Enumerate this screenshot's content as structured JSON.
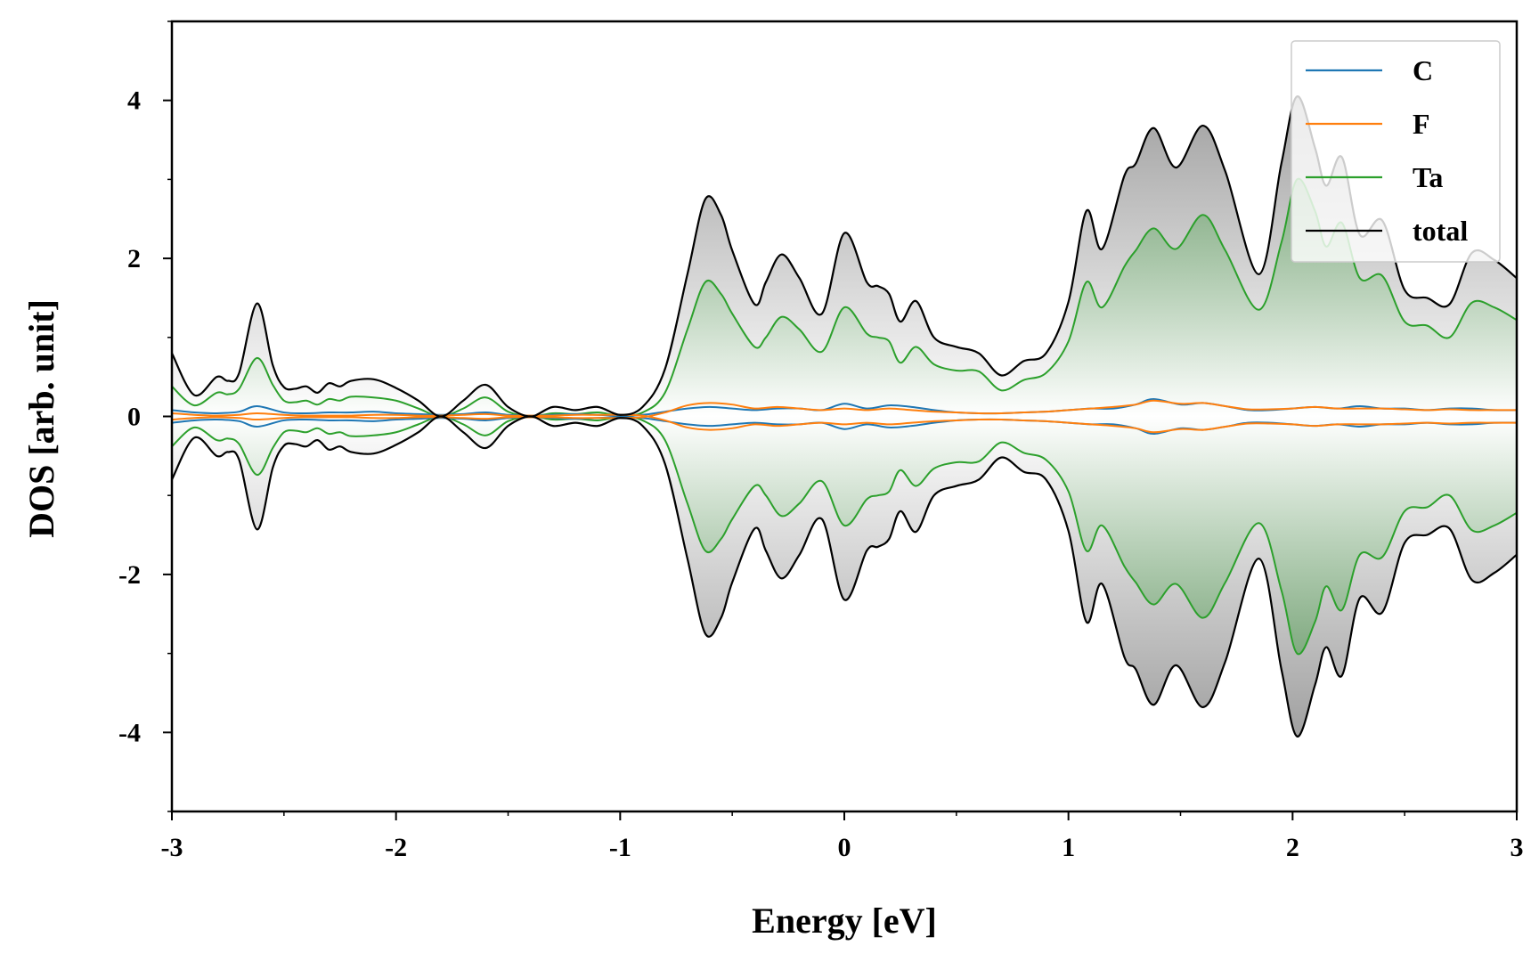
{
  "chart_data": {
    "type": "line",
    "xlabel": "Energy [eV]",
    "ylabel": "DOS [arb. unit]",
    "xlim": [
      -3,
      3
    ],
    "ylim": [
      -5,
      5
    ],
    "x_ticks": [
      -3,
      -2,
      -1,
      0,
      1,
      2,
      3
    ],
    "x_tick_labels": [
      "-3",
      "-2",
      "-1",
      "0",
      "1",
      "2",
      "3"
    ],
    "y_ticks": [
      -4,
      -2,
      0,
      2,
      4
    ],
    "y_tick_labels": [
      "-4",
      "-2",
      "0",
      "2",
      "4"
    ],
    "mirrored_spin": true,
    "grid": false,
    "legend_position": "top-right",
    "fill": {
      "total": "gray-gradient",
      "Ta": "green-gradient"
    },
    "series": [
      {
        "name": "C",
        "color": "#1f77b4",
        "x": [
          -3,
          -2.9,
          -2.8,
          -2.7,
          -2.62,
          -2.5,
          -2.4,
          -2.3,
          -2.2,
          -2.1,
          -2.0,
          -1.9,
          -1.8,
          -1.7,
          -1.6,
          -1.5,
          -1.4,
          -1.3,
          -1.2,
          -1.1,
          -1.0,
          -0.9,
          -0.8,
          -0.7,
          -0.6,
          -0.5,
          -0.4,
          -0.3,
          -0.2,
          -0.1,
          0.0,
          0.1,
          0.2,
          0.3,
          0.4,
          0.5,
          0.6,
          0.7,
          0.8,
          0.9,
          1.0,
          1.1,
          1.2,
          1.3,
          1.38,
          1.5,
          1.6,
          1.7,
          1.8,
          1.9,
          2.0,
          2.1,
          2.2,
          2.3,
          2.4,
          2.5,
          2.6,
          2.7,
          2.8,
          2.9,
          3.0
        ],
        "values": [
          0.08,
          0.05,
          0.04,
          0.06,
          0.13,
          0.05,
          0.04,
          0.05,
          0.05,
          0.06,
          0.04,
          0.03,
          0.02,
          0.03,
          0.05,
          0.02,
          0.01,
          0.02,
          0.03,
          0.02,
          0.01,
          0.02,
          0.06,
          0.1,
          0.12,
          0.1,
          0.08,
          0.1,
          0.1,
          0.08,
          0.16,
          0.1,
          0.14,
          0.12,
          0.08,
          0.05,
          0.04,
          0.04,
          0.05,
          0.06,
          0.08,
          0.1,
          0.1,
          0.15,
          0.22,
          0.15,
          0.17,
          0.13,
          0.08,
          0.08,
          0.1,
          0.12,
          0.1,
          0.13,
          0.1,
          0.1,
          0.08,
          0.1,
          0.1,
          0.08,
          0.08
        ]
      },
      {
        "name": "F",
        "color": "#ff7f0e",
        "x": [
          -3,
          -2.9,
          -2.8,
          -2.7,
          -2.62,
          -2.5,
          -2.4,
          -2.3,
          -2.2,
          -2.1,
          -2.0,
          -1.9,
          -1.8,
          -1.7,
          -1.6,
          -1.5,
          -1.4,
          -1.3,
          -1.2,
          -1.1,
          -1.0,
          -0.9,
          -0.8,
          -0.7,
          -0.6,
          -0.5,
          -0.4,
          -0.3,
          -0.2,
          -0.1,
          0.0,
          0.1,
          0.2,
          0.3,
          0.4,
          0.5,
          0.6,
          0.7,
          0.8,
          0.9,
          1.0,
          1.1,
          1.2,
          1.3,
          1.38,
          1.5,
          1.6,
          1.7,
          1.8,
          1.9,
          2.0,
          2.1,
          2.2,
          2.3,
          2.4,
          2.5,
          2.6,
          2.7,
          2.8,
          2.9,
          3.0
        ],
        "values": [
          -0.04,
          -0.02,
          -0.01,
          -0.02,
          -0.04,
          -0.02,
          -0.01,
          -0.01,
          -0.01,
          -0.02,
          -0.02,
          -0.01,
          -0.01,
          -0.02,
          -0.03,
          -0.01,
          -0.01,
          -0.01,
          -0.02,
          -0.02,
          -0.02,
          -0.01,
          0.05,
          0.14,
          0.17,
          0.15,
          0.1,
          0.12,
          0.1,
          0.08,
          0.1,
          0.08,
          0.1,
          0.08,
          0.06,
          0.05,
          0.04,
          0.04,
          0.05,
          0.06,
          0.08,
          0.1,
          0.12,
          0.15,
          0.2,
          0.16,
          0.17,
          0.13,
          0.09,
          0.09,
          0.1,
          0.12,
          0.1,
          0.1,
          0.1,
          0.09,
          0.08,
          0.09,
          0.08,
          0.08,
          0.08
        ]
      },
      {
        "name": "Ta",
        "color": "#2ca02c",
        "x": [
          -3,
          -2.9,
          -2.8,
          -2.75,
          -2.7,
          -2.62,
          -2.55,
          -2.5,
          -2.45,
          -2.4,
          -2.35,
          -2.3,
          -2.25,
          -2.2,
          -2.1,
          -2.0,
          -1.9,
          -1.8,
          -1.7,
          -1.6,
          -1.5,
          -1.4,
          -1.3,
          -1.2,
          -1.1,
          -1.0,
          -0.9,
          -0.8,
          -0.7,
          -0.62,
          -0.55,
          -0.5,
          -0.4,
          -0.35,
          -0.28,
          -0.2,
          -0.1,
          0.0,
          0.1,
          0.15,
          0.2,
          0.25,
          0.32,
          0.4,
          0.5,
          0.6,
          0.7,
          0.8,
          0.9,
          1.0,
          1.08,
          1.15,
          1.25,
          1.3,
          1.38,
          1.48,
          1.6,
          1.7,
          1.85,
          1.95,
          2.02,
          2.1,
          2.15,
          2.22,
          2.3,
          2.4,
          2.5,
          2.6,
          2.7,
          2.8,
          2.9,
          3.0
        ],
        "values": [
          0.38,
          0.14,
          0.3,
          0.28,
          0.35,
          0.74,
          0.4,
          0.2,
          0.18,
          0.2,
          0.15,
          0.22,
          0.2,
          0.25,
          0.24,
          0.2,
          0.1,
          0.0,
          0.1,
          0.24,
          0.06,
          0.0,
          0.04,
          0.03,
          0.05,
          0.01,
          0.05,
          0.3,
          1.1,
          1.7,
          1.55,
          1.3,
          0.88,
          1.0,
          1.26,
          1.1,
          0.82,
          1.38,
          1.05,
          1.0,
          0.95,
          0.68,
          0.88,
          0.66,
          0.58,
          0.57,
          0.33,
          0.46,
          0.55,
          0.95,
          1.7,
          1.38,
          1.9,
          2.1,
          2.38,
          2.12,
          2.55,
          2.1,
          1.35,
          2.2,
          3.0,
          2.6,
          2.15,
          2.45,
          1.75,
          1.78,
          1.2,
          1.15,
          1.0,
          1.44,
          1.38,
          1.22
        ]
      },
      {
        "name": "total",
        "color": "#000000",
        "x": [
          -3,
          -2.9,
          -2.8,
          -2.75,
          -2.7,
          -2.62,
          -2.55,
          -2.5,
          -2.45,
          -2.4,
          -2.35,
          -2.3,
          -2.25,
          -2.2,
          -2.1,
          -2.0,
          -1.9,
          -1.8,
          -1.7,
          -1.6,
          -1.5,
          -1.4,
          -1.3,
          -1.2,
          -1.1,
          -1.0,
          -0.9,
          -0.8,
          -0.7,
          -0.62,
          -0.55,
          -0.5,
          -0.4,
          -0.35,
          -0.28,
          -0.2,
          -0.1,
          0.0,
          0.1,
          0.15,
          0.2,
          0.25,
          0.32,
          0.4,
          0.5,
          0.6,
          0.7,
          0.8,
          0.9,
          1.0,
          1.08,
          1.15,
          1.25,
          1.3,
          1.38,
          1.48,
          1.6,
          1.7,
          1.85,
          1.95,
          2.02,
          2.1,
          2.15,
          2.22,
          2.3,
          2.4,
          2.5,
          2.6,
          2.7,
          2.8,
          2.9,
          3.0
        ],
        "values": [
          0.8,
          0.27,
          0.5,
          0.45,
          0.55,
          1.43,
          0.65,
          0.37,
          0.35,
          0.38,
          0.3,
          0.42,
          0.38,
          0.45,
          0.47,
          0.36,
          0.2,
          0.0,
          0.2,
          0.4,
          0.12,
          0.0,
          0.12,
          0.08,
          0.12,
          0.02,
          0.12,
          0.6,
          1.8,
          2.75,
          2.55,
          2.1,
          1.42,
          1.7,
          2.05,
          1.75,
          1.3,
          2.32,
          1.7,
          1.65,
          1.55,
          1.2,
          1.46,
          1.0,
          0.88,
          0.8,
          0.52,
          0.7,
          0.8,
          1.45,
          2.6,
          2.12,
          3.05,
          3.2,
          3.65,
          3.15,
          3.68,
          3.1,
          1.8,
          3.2,
          4.05,
          3.4,
          2.92,
          3.28,
          2.3,
          2.48,
          1.6,
          1.5,
          1.42,
          2.07,
          1.98,
          1.75
        ]
      }
    ]
  }
}
